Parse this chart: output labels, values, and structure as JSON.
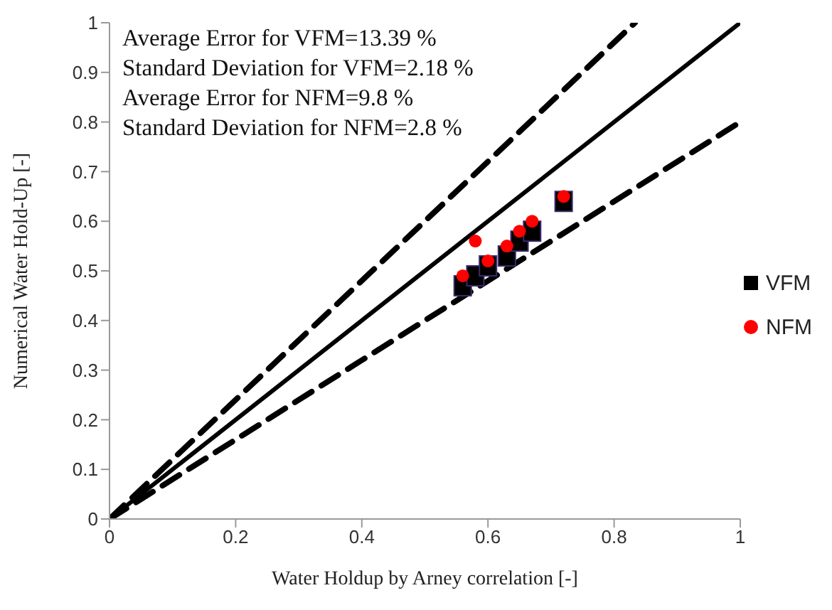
{
  "chart_data": {
    "type": "scatter",
    "xlabel": "Water Holdup by Arney correlation  [-]",
    "ylabel": "Numerical  Water Hold-Up  [-]",
    "annotations": [
      "Average Error for VFM=13.39 %",
      "Standard Deviation for VFM=2.18 %",
      "Average Error for NFM=9.8 %",
      "Standard Deviation for NFM=2.8 %"
    ],
    "xlim": [
      0,
      1
    ],
    "xticks": [
      0,
      0.2,
      0.4,
      0.6,
      0.8,
      1
    ],
    "ylim": [
      0,
      1
    ],
    "yticks": [
      0,
      0.1,
      0.2,
      0.3,
      0.4,
      0.5,
      0.6,
      0.7,
      0.8,
      0.9,
      1
    ],
    "grid": false,
    "legend": "right",
    "series": [
      {
        "name": "VFM",
        "marker": "square",
        "color": "#000000",
        "x": [
          0.56,
          0.58,
          0.6,
          0.63,
          0.65,
          0.67,
          0.72
        ],
        "values": [
          0.47,
          0.49,
          0.51,
          0.53,
          0.56,
          0.58,
          0.64
        ],
        "errors": [
          0.015,
          0.015,
          0.015,
          0.015,
          0.015,
          0.015,
          0.015
        ]
      },
      {
        "name": "NFM",
        "marker": "circle",
        "color": "#ff0000",
        "x": [
          0.56,
          0.58,
          0.6,
          0.63,
          0.65,
          0.67,
          0.72
        ],
        "values": [
          0.49,
          0.56,
          0.52,
          0.55,
          0.58,
          0.6,
          0.65
        ]
      },
      {
        "type": "line",
        "marker": "none",
        "line_style": "solid",
        "color": "#000000",
        "x": [
          0,
          1
        ],
        "values": [
          0,
          1
        ]
      },
      {
        "type": "line",
        "marker": "none",
        "line_style": "dashed",
        "color": "#000000",
        "x": [
          0,
          0.833
        ],
        "values": [
          0,
          1
        ]
      },
      {
        "type": "line",
        "marker": "none",
        "line_style": "dashed",
        "color": "#000000",
        "x": [
          0,
          1
        ],
        "values": [
          0,
          0.8
        ]
      }
    ]
  }
}
